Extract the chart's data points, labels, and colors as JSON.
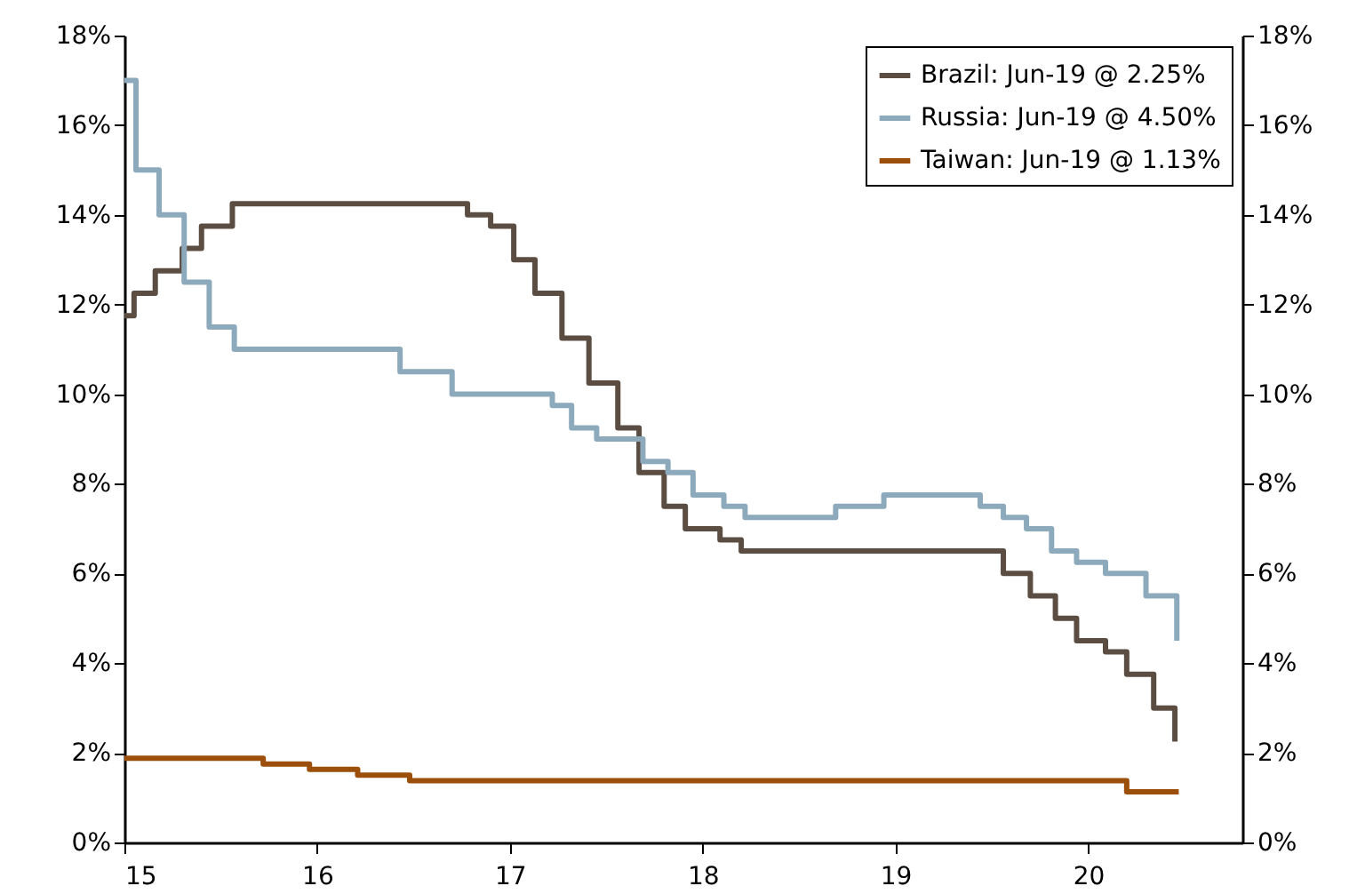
{
  "chart_data": {
    "type": "step",
    "xlim": [
      15,
      20.8
    ],
    "xticks": [
      15,
      16,
      17,
      18,
      19,
      20
    ],
    "ylim": [
      0,
      18
    ],
    "yticks": [
      {
        "value": 0,
        "label": "0%"
      },
      {
        "value": 2,
        "label": "2%"
      },
      {
        "value": 4,
        "label": "4%"
      },
      {
        "value": 6,
        "label": "6%"
      },
      {
        "value": 8,
        "label": "8%"
      },
      {
        "value": 10,
        "label": "10%"
      },
      {
        "value": 12,
        "label": "12%"
      },
      {
        "value": 14,
        "label": "14%"
      },
      {
        "value": 16,
        "label": "16%"
      },
      {
        "value": 18,
        "label": "18%"
      }
    ],
    "y2lim": [
      0,
      18
    ],
    "y2ticks": [
      {
        "value": 0,
        "label": "0%"
      },
      {
        "value": 2,
        "label": "2%"
      },
      {
        "value": 4,
        "label": "4%"
      },
      {
        "value": 6,
        "label": "6%"
      },
      {
        "value": 8,
        "label": "8%"
      },
      {
        "value": 10,
        "label": "10%"
      },
      {
        "value": 12,
        "label": "12%"
      },
      {
        "value": 14,
        "label": "14%"
      },
      {
        "value": 16,
        "label": "16%"
      },
      {
        "value": 18,
        "label": "18%"
      }
    ],
    "grid": false,
    "legend": "top right",
    "series": [
      {
        "name": "Brazil: Jun-19 @ 2.25%",
        "color": "#5b4d42",
        "x": [
          15,
          15.05,
          15.16,
          15.3,
          15.4,
          15.56,
          16.78,
          16.9,
          17.02,
          17.13,
          17.27,
          17.41,
          17.56,
          17.67,
          17.8,
          17.91,
          18.09,
          18.2,
          19.56,
          19.7,
          19.83,
          19.94,
          20.09,
          20.2,
          20.34,
          20.45
        ],
        "values": [
          11.75,
          12.25,
          12.75,
          13.25,
          13.75,
          14.25,
          14,
          13.75,
          13,
          12.25,
          11.25,
          10.25,
          9.25,
          8.25,
          7.5,
          7,
          6.75,
          6.5,
          6,
          5.5,
          5,
          4.5,
          4.25,
          3.75,
          3,
          2.25
        ]
      },
      {
        "name": "Russia: Jun-19 @ 4.50%",
        "color": "#8da9bc",
        "x": [
          15,
          15.06,
          15.18,
          15.31,
          15.44,
          15.57,
          16.43,
          16.7,
          17.22,
          17.32,
          17.45,
          17.69,
          17.82,
          17.95,
          18.11,
          18.22,
          18.69,
          18.94,
          19.44,
          19.56,
          19.68,
          19.81,
          19.94,
          20.09,
          20.3,
          20.46
        ],
        "values": [
          17,
          15,
          14,
          12.5,
          11.5,
          11,
          10.5,
          10,
          9.75,
          9.25,
          9,
          8.5,
          8.25,
          7.75,
          7.5,
          7.25,
          7.5,
          7.75,
          7.5,
          7.25,
          7,
          6.5,
          6.25,
          6,
          5.5,
          4.5
        ]
      },
      {
        "name": "Taiwan: Jun-19 @ 1.13%",
        "color": "#9c4f0a",
        "x": [
          15,
          15.72,
          15.96,
          16.21,
          16.48,
          20.2,
          20.47
        ],
        "values": [
          1.88,
          1.75,
          1.63,
          1.5,
          1.38,
          1.13,
          1.13
        ]
      }
    ]
  }
}
